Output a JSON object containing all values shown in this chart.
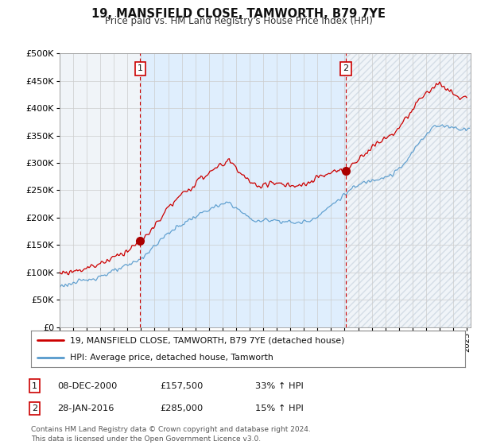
{
  "title": "19, MANSFIELD CLOSE, TAMWORTH, B79 7YE",
  "subtitle": "Price paid vs. HM Land Registry's House Price Index (HPI)",
  "ylim": [
    0,
    500000
  ],
  "yticks": [
    0,
    50000,
    100000,
    150000,
    200000,
    250000,
    300000,
    350000,
    400000,
    450000,
    500000
  ],
  "xlim_start": 1995.0,
  "xlim_end": 2025.3,
  "sale1_date": 2000.94,
  "sale1_price": 157500,
  "sale2_date": 2016.08,
  "sale2_price": 285000,
  "legend_line1": "19, MANSFIELD CLOSE, TAMWORTH, B79 7YE (detached house)",
  "legend_line2": "HPI: Average price, detached house, Tamworth",
  "table_rows": [
    [
      "1",
      "08-DEC-2000",
      "£157,500",
      "33% ↑ HPI"
    ],
    [
      "2",
      "28-JAN-2016",
      "£285,000",
      "15% ↑ HPI"
    ]
  ],
  "footnote": "Contains HM Land Registry data © Crown copyright and database right 2024.\nThis data is licensed under the Open Government Licence v3.0.",
  "line_color_red": "#cc0000",
  "line_color_blue": "#5599cc",
  "grid_color": "#cccccc",
  "bg_color": "#ffffff",
  "plot_bg_color": "#f0f4f8",
  "shade_color": "#ddeeff",
  "vline_color": "#cc0000",
  "marker_color_red": "#aa0000"
}
